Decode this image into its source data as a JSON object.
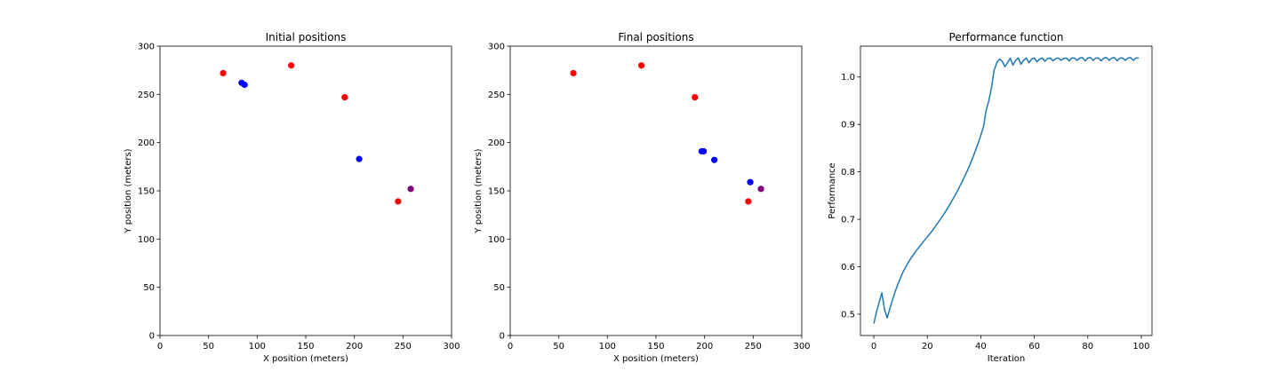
{
  "chart_data": [
    {
      "type": "scatter",
      "title": "Initial positions",
      "xlabel": "X position (meters)",
      "ylabel": "Y position (meters)",
      "xlim": [
        0,
        300
      ],
      "ylim": [
        0,
        300
      ],
      "xticks": [
        0,
        50,
        100,
        150,
        200,
        250,
        300
      ],
      "yticks": [
        0,
        50,
        100,
        150,
        200,
        250,
        300
      ],
      "grid": false,
      "series": [
        {
          "color": "#ff0000",
          "points": [
            [
              65,
              272
            ],
            [
              135,
              280
            ],
            [
              190,
              247
            ],
            [
              245,
              139
            ]
          ]
        },
        {
          "color": "#0000ff",
          "points": [
            [
              84,
              262
            ],
            [
              87,
              260
            ],
            [
              205,
              183
            ]
          ]
        },
        {
          "color": "#800080",
          "points": [
            [
              258,
              152
            ]
          ]
        }
      ]
    },
    {
      "type": "scatter",
      "title": "Final positions",
      "xlabel": "X position (meters)",
      "ylabel": "Y position (meters)",
      "xlim": [
        0,
        300
      ],
      "ylim": [
        0,
        300
      ],
      "xticks": [
        0,
        50,
        100,
        150,
        200,
        250,
        300
      ],
      "yticks": [
        0,
        50,
        100,
        150,
        200,
        250,
        300
      ],
      "grid": false,
      "series": [
        {
          "color": "#ff0000",
          "points": [
            [
              65,
              272
            ],
            [
              135,
              280
            ],
            [
              190,
              247
            ],
            [
              245,
              139
            ]
          ]
        },
        {
          "color": "#0000ff",
          "points": [
            [
              197,
              191
            ],
            [
              199,
              191
            ],
            [
              210,
              182
            ],
            [
              247,
              159
            ]
          ]
        },
        {
          "color": "#800080",
          "points": [
            [
              258,
              152
            ]
          ]
        }
      ]
    },
    {
      "type": "line",
      "title": "Performance function",
      "xlabel": "Iteration",
      "ylabel": "Performance",
      "xlim": [
        -5,
        104
      ],
      "ylim": [
        0.455,
        1.065
      ],
      "xticks": [
        0,
        20,
        40,
        60,
        80,
        100
      ],
      "yticks": [
        0.5,
        0.6,
        0.7,
        0.8,
        0.9,
        1.0
      ],
      "ytick_labels": [
        "0.5",
        "0.6",
        "0.7",
        "0.8",
        "0.9",
        "1.0"
      ],
      "grid": false,
      "series": [
        {
          "color": "#1f77b4",
          "x": [
            0,
            1,
            2,
            3,
            4,
            5,
            6,
            7,
            8,
            9,
            10,
            11,
            12,
            13,
            14,
            15,
            16,
            17,
            18,
            19,
            20,
            21,
            22,
            23,
            24,
            25,
            26,
            27,
            28,
            29,
            30,
            31,
            32,
            33,
            34,
            35,
            36,
            37,
            38,
            39,
            40,
            41,
            42,
            43,
            44,
            45,
            46,
            47,
            48,
            49,
            50,
            51,
            52,
            53,
            54,
            55,
            56,
            57,
            58,
            59,
            60,
            61,
            62,
            63,
            64,
            65,
            66,
            67,
            68,
            69,
            70,
            71,
            72,
            73,
            74,
            75,
            76,
            77,
            78,
            79,
            80,
            81,
            82,
            83,
            84,
            85,
            86,
            87,
            88,
            89,
            90,
            91,
            92,
            93,
            94,
            95,
            96,
            97,
            98,
            99
          ],
          "y": [
            0.48,
            0.505,
            0.525,
            0.545,
            0.51,
            0.492,
            0.512,
            0.53,
            0.548,
            0.563,
            0.577,
            0.59,
            0.6,
            0.61,
            0.619,
            0.627,
            0.635,
            0.642,
            0.649,
            0.656,
            0.663,
            0.67,
            0.677,
            0.685,
            0.693,
            0.701,
            0.709,
            0.718,
            0.727,
            0.737,
            0.747,
            0.757,
            0.768,
            0.779,
            0.791,
            0.803,
            0.816,
            0.83,
            0.845,
            0.86,
            0.877,
            0.895,
            0.93,
            0.95,
            0.978,
            1.015,
            1.03,
            1.038,
            1.033,
            1.022,
            1.03,
            1.04,
            1.025,
            1.035,
            1.04,
            1.027,
            1.035,
            1.04,
            1.03,
            1.038,
            1.04,
            1.032,
            1.038,
            1.04,
            1.033,
            1.039,
            1.04,
            1.034,
            1.039,
            1.04,
            1.035,
            1.039,
            1.04,
            1.034,
            1.04,
            1.04,
            1.035,
            1.04,
            1.041,
            1.034,
            1.04,
            1.041,
            1.035,
            1.04,
            1.04,
            1.034,
            1.04,
            1.041,
            1.035,
            1.04,
            1.041,
            1.034,
            1.04,
            1.04,
            1.035,
            1.04,
            1.041,
            1.035,
            1.04,
            1.04
          ]
        }
      ]
    }
  ]
}
